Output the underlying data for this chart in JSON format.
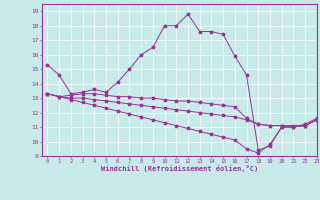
{
  "xlabel": "Windchill (Refroidissement éolien,°C)",
  "xlim": [
    -0.5,
    23
  ],
  "ylim": [
    9,
    19.5
  ],
  "xticks": [
    0,
    1,
    2,
    3,
    4,
    5,
    6,
    7,
    8,
    9,
    10,
    11,
    12,
    13,
    14,
    15,
    16,
    17,
    18,
    19,
    20,
    21,
    22,
    23
  ],
  "yticks": [
    9,
    10,
    11,
    12,
    13,
    14,
    15,
    16,
    17,
    18,
    19
  ],
  "bg_color": "#c8eae8",
  "line_color": "#993399",
  "grid_color": "#ffffff",
  "curves": [
    [
      15.3,
      14.6,
      13.3,
      13.4,
      13.6,
      13.4,
      14.1,
      15.0,
      16.0,
      16.5,
      18.0,
      18.0,
      18.8,
      17.6,
      17.6,
      17.4,
      15.9,
      14.6,
      9.4,
      9.7,
      11.0,
      11.0,
      11.2,
      11.6
    ],
    [
      13.3,
      13.1,
      13.2,
      13.3,
      13.3,
      13.2,
      13.1,
      13.1,
      13.0,
      13.0,
      12.9,
      12.8,
      12.8,
      12.7,
      12.6,
      12.5,
      12.4,
      11.6,
      11.2,
      11.1,
      11.1,
      11.1,
      11.1,
      11.5
    ],
    [
      13.3,
      13.1,
      13.0,
      13.0,
      12.9,
      12.8,
      12.7,
      12.6,
      12.5,
      12.4,
      12.3,
      12.2,
      12.1,
      12.0,
      11.9,
      11.8,
      11.7,
      11.5,
      11.2,
      11.1,
      11.1,
      11.0,
      11.1,
      11.5
    ],
    [
      13.3,
      13.1,
      12.9,
      12.7,
      12.5,
      12.3,
      12.1,
      11.9,
      11.7,
      11.5,
      11.3,
      11.1,
      10.9,
      10.7,
      10.5,
      10.3,
      10.1,
      9.5,
      9.2,
      9.8,
      11.0,
      11.0,
      11.1,
      11.5
    ]
  ]
}
